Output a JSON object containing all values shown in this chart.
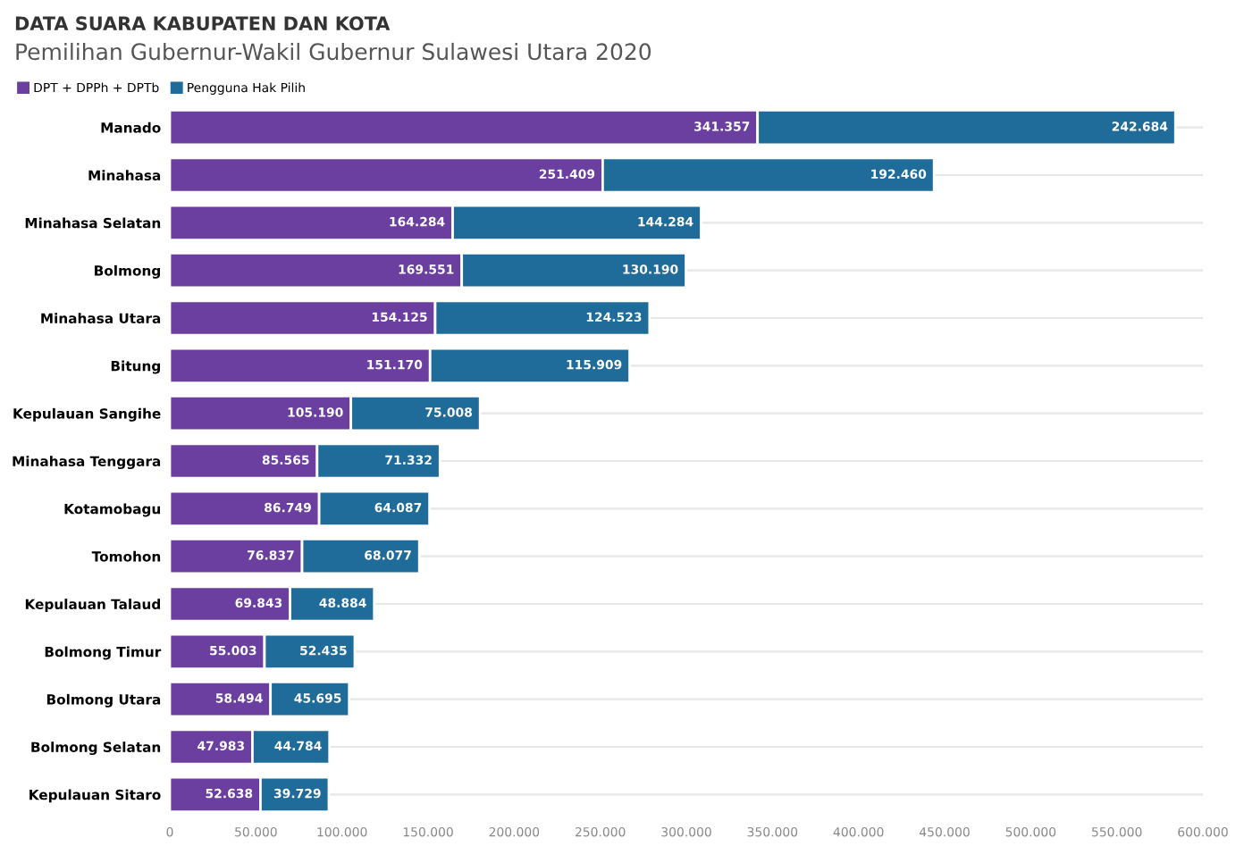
{
  "chart_data": {
    "type": "bar",
    "orientation": "horizontal",
    "stacked": true,
    "title": "DATA SUARA KABUPATEN DAN KOTA",
    "subtitle": "Pemilihan Gubernur-Wakil Gubernur Sulawesi Utara 2020",
    "categories": [
      "Manado",
      "Minahasa",
      "Minahasa Selatan",
      "Bolmong",
      "Minahasa Utara",
      "Bitung",
      "Kepulauan Sangihe",
      "Minahasa Tenggara",
      "Kotamobagu",
      "Tomohon",
      "Kepulauan Talaud",
      "Bolmong Timur",
      "Bolmong Utara",
      "Bolmong Selatan",
      "Kepulauan Sitaro"
    ],
    "series": [
      {
        "name": "DPT + DPPh + DPTb",
        "color": "#6b3fa0",
        "values": [
          341357,
          251409,
          164284,
          169551,
          154125,
          151170,
          105190,
          85565,
          86749,
          76837,
          69843,
          55003,
          58494,
          47983,
          52638
        ],
        "value_labels": [
          "341.357",
          "251.409",
          "164.284",
          "169.551",
          "154.125",
          "151.170",
          "105.190",
          "85.565",
          "86.749",
          "76.837",
          "69.843",
          "55.003",
          "58.494",
          "47.983",
          "52.638"
        ]
      },
      {
        "name": "Pengguna Hak Pilih",
        "color": "#1f6b9a",
        "values": [
          242684,
          192460,
          144284,
          130190,
          124523,
          115909,
          75008,
          71332,
          64087,
          68077,
          48884,
          52435,
          45695,
          44784,
          39729
        ],
        "value_labels": [
          "242.684",
          "192.460",
          "144.284",
          "130.190",
          "124.523",
          "115.909",
          "75.008",
          "71.332",
          "64.087",
          "68.077",
          "48.884",
          "52.435",
          "45.695",
          "44.784",
          "39.729"
        ]
      }
    ],
    "xlim": [
      0,
      600000
    ],
    "xticks": [
      {
        "value": 0,
        "label": "0"
      },
      {
        "value": 50000,
        "label": "50.000"
      },
      {
        "value": 100000,
        "label": "100.000"
      },
      {
        "value": 150000,
        "label": "150.000"
      },
      {
        "value": 200000,
        "label": "200.000"
      },
      {
        "value": 250000,
        "label": "250.000"
      },
      {
        "value": 300000,
        "label": "300.000"
      },
      {
        "value": 350000,
        "label": "350.000"
      },
      {
        "value": 400000,
        "label": "400.000"
      },
      {
        "value": 450000,
        "label": "450.000"
      },
      {
        "value": 500000,
        "label": "500.000"
      },
      {
        "value": 550000,
        "label": "550.000"
      },
      {
        "value": 600000,
        "label": "600.000"
      }
    ],
    "grid": "y",
    "legend": "top left"
  }
}
